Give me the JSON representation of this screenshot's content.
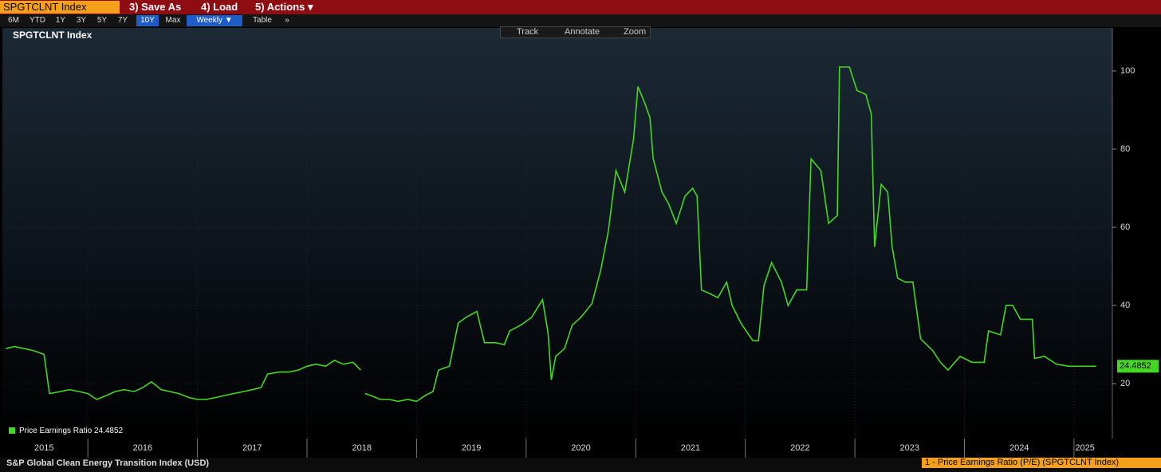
{
  "toolbar": {
    "security": "SPGTCLNT Index",
    "menu": [
      "3) Save As",
      "4) Load",
      "5) Actions ▾"
    ],
    "ranges": [
      "6M",
      "YTD",
      "1Y",
      "3Y",
      "5Y",
      "7Y",
      "10Y",
      "Max"
    ],
    "frequency": "Weekly ▼",
    "buttons": [
      "Table",
      "»"
    ],
    "tools": [
      "Track",
      "Annotate",
      "Zoom"
    ]
  },
  "chart_data": {
    "type": "line",
    "title": "SPGTCLNT Index",
    "grid": true,
    "legend": "bottom-left",
    "xlim": [
      2015.22,
      2025.35
    ],
    "ylim": [
      6,
      111
    ],
    "xticks": [
      {
        "value": 2015.6,
        "label": "2015"
      },
      {
        "value": 2016.5,
        "label": "2016"
      },
      {
        "value": 2017.5,
        "label": "2017"
      },
      {
        "value": 2018.5,
        "label": "2018"
      },
      {
        "value": 2019.5,
        "label": "2019"
      },
      {
        "value": 2020.5,
        "label": "2020"
      },
      {
        "value": 2021.5,
        "label": "2021"
      },
      {
        "value": 2022.5,
        "label": "2022"
      },
      {
        "value": 2023.5,
        "label": "2023"
      },
      {
        "value": 2024.5,
        "label": "2024"
      },
      {
        "value": 2025.1,
        "label": "2025"
      }
    ],
    "yticks": [
      20,
      40,
      60,
      80,
      100
    ],
    "x": [
      2015.25,
      2015.33,
      2015.42,
      2015.5,
      2015.6,
      2015.65,
      2015.75,
      2015.83,
      2015.92,
      2016.0,
      2016.08,
      2016.17,
      2016.25,
      2016.33,
      2016.42,
      2016.5,
      2016.58,
      2016.67,
      2016.75,
      2016.83,
      2016.92,
      2017.0,
      2017.08,
      2017.17,
      2017.25,
      2017.33,
      2017.42,
      2017.5,
      2017.58,
      2017.64,
      2017.75,
      2017.83,
      2017.92,
      2018.0,
      2018.08,
      2018.17,
      2018.25,
      2018.33,
      2018.42,
      2018.49,
      2018.51,
      2018.53,
      2018.58,
      2018.67,
      2018.75,
      2018.83,
      2018.92,
      2019.0,
      2019.08,
      2019.15,
      2019.2,
      2019.3,
      2019.38,
      2019.45,
      2019.55,
      2019.62,
      2019.72,
      2019.8,
      2019.85,
      2019.95,
      2020.05,
      2020.15,
      2020.2,
      2020.23,
      2020.27,
      2020.35,
      2020.42,
      2020.5,
      2020.6,
      2020.68,
      2020.75,
      2020.82,
      2020.9,
      2020.98,
      2021.02,
      2021.08,
      2021.13,
      2021.16,
      2021.24,
      2021.3,
      2021.37,
      2021.45,
      2021.52,
      2021.56,
      2021.6,
      2021.68,
      2021.75,
      2021.83,
      2021.88,
      2021.96,
      2022.02,
      2022.07,
      2022.12,
      2022.17,
      2022.24,
      2022.33,
      2022.39,
      2022.47,
      2022.56,
      2022.6,
      2022.69,
      2022.76,
      2022.84,
      2022.86,
      2022.95,
      2023.02,
      2023.1,
      2023.15,
      2023.18,
      2023.24,
      2023.3,
      2023.34,
      2023.39,
      2023.46,
      2023.53,
      2023.6,
      2023.71,
      2023.78,
      2023.85,
      2023.96,
      2024.07,
      2024.18,
      2024.22,
      2024.33,
      2024.38,
      2024.44,
      2024.51,
      2024.62,
      2024.64,
      2024.73,
      2024.84,
      2024.95,
      2025.09,
      2025.2
    ],
    "series": [
      {
        "name": "Price Earnings Ratio",
        "color": "#46d624",
        "values": [
          29,
          29.5,
          29,
          28.5,
          27.5,
          17.5,
          18,
          18.5,
          18,
          17.5,
          16,
          17,
          18,
          18.5,
          18,
          19,
          20.5,
          18.5,
          18,
          17.5,
          16.5,
          16,
          16,
          16.5,
          17,
          17.5,
          18,
          18.5,
          19,
          22.5,
          23,
          23,
          23.5,
          24.5,
          25,
          24.5,
          26,
          25,
          25.5,
          23.5,
          null,
          17.5,
          17,
          16,
          16,
          15.5,
          16,
          15.5,
          17,
          18,
          23.5,
          24.5,
          35.5,
          37,
          38.5,
          30.5,
          30.5,
          30,
          33.5,
          35,
          37,
          41.5,
          33,
          21,
          27,
          29,
          35,
          37,
          40.5,
          49,
          59,
          74.5,
          69,
          82.5,
          96,
          92,
          88,
          77.5,
          69,
          66,
          61,
          68,
          70,
          68,
          44,
          43,
          42,
          46,
          40,
          35.5,
          33,
          31,
          31,
          45,
          51,
          46,
          40,
          44,
          44,
          77.5,
          74.5,
          61,
          63,
          101,
          101,
          95,
          94,
          89,
          55,
          71,
          69,
          55,
          47,
          46,
          46,
          31.5,
          28.5,
          25.5,
          23.5,
          27,
          25.5,
          25.5,
          33.5,
          32.5,
          40,
          40,
          36.5,
          36.5,
          26.5,
          27,
          25,
          24.5,
          24.5,
          24.4852
        ]
      }
    ]
  },
  "footer": {
    "left": "S&P Global Clean Energy Transition Index (USD)",
    "right": "1 - Price Earnings Ratio (P/E) (SPGTCLNT Index)"
  }
}
